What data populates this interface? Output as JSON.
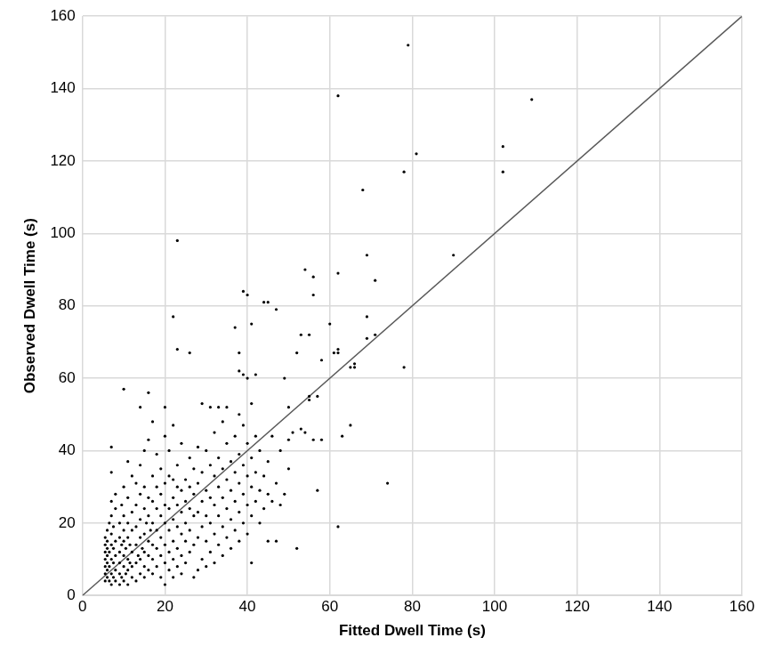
{
  "chart_data": {
    "type": "scatter",
    "x_label": "Fitted Dwell Time (s)",
    "y_label": "Observed Dwell Time (s)",
    "xlim": [
      0,
      160
    ],
    "ylim": [
      0,
      160
    ],
    "xticks": [
      0,
      20,
      40,
      60,
      80,
      100,
      120,
      140,
      160
    ],
    "yticks": [
      0,
      20,
      40,
      60,
      80,
      100,
      120,
      140,
      160
    ],
    "grid": true,
    "series": [
      {
        "type": "scatter",
        "color": "#000000",
        "marker": "circle",
        "x": [
          79,
          62,
          109,
          102,
          81,
          102,
          78,
          68,
          23,
          90,
          69,
          54,
          62,
          56,
          71,
          39,
          40,
          56,
          44,
          45,
          47,
          22,
          69,
          60,
          41,
          37,
          53,
          55,
          71,
          69,
          23,
          26,
          38,
          52,
          61,
          62,
          62,
          58,
          66,
          66,
          65,
          78,
          38,
          40,
          49,
          39,
          42,
          10,
          16,
          55,
          57,
          55,
          41,
          29,
          14,
          20,
          31,
          33,
          35,
          50,
          38,
          53,
          51,
          54,
          56,
          58,
          63,
          65,
          74,
          62,
          57,
          52,
          45,
          47,
          41,
          22,
          7,
          7,
          11,
          5.5,
          5.5,
          5.5,
          5.5,
          5.5,
          5.5,
          5.5,
          6,
          6,
          6,
          6,
          6,
          6,
          6,
          6.5,
          6.5,
          6.5,
          6.5,
          7,
          7,
          7,
          7,
          7,
          7,
          7,
          7.5,
          7.5,
          7.5,
          7.5,
          8,
          8,
          8,
          8,
          8,
          8,
          9,
          9,
          9,
          9,
          9,
          9,
          9.5,
          9.5,
          9.5,
          10,
          10,
          10,
          10,
          10,
          10,
          10,
          10.5,
          10.5,
          11,
          11,
          11,
          11,
          11,
          11,
          11.5,
          11.5,
          12,
          12,
          12,
          12,
          12,
          12,
          13,
          13,
          13,
          13,
          13,
          13,
          13.5,
          14,
          14,
          14,
          14,
          14,
          14,
          14.5,
          15,
          15,
          15,
          15,
          15,
          15,
          15,
          15.5,
          16,
          16,
          16,
          16,
          16,
          16,
          16.5,
          17,
          17,
          17,
          17,
          17,
          17,
          17,
          18,
          18,
          18,
          18,
          18,
          18,
          19,
          19,
          19,
          19,
          19,
          19,
          20,
          20,
          20,
          20,
          20,
          20,
          20,
          21,
          21,
          21,
          21,
          21,
          21,
          22,
          22,
          22,
          22,
          22,
          22,
          23,
          23,
          23,
          23,
          23,
          23,
          24,
          24,
          24,
          24,
          24,
          24,
          25,
          25,
          25,
          25,
          25,
          26,
          26,
          26,
          26,
          26,
          27,
          27,
          27,
          27,
          27,
          28,
          28,
          28,
          28,
          28,
          29,
          29,
          29,
          29,
          30,
          30,
          30,
          30,
          30,
          31,
          31,
          31,
          31,
          32,
          32,
          32,
          32,
          32,
          33,
          33,
          33,
          33,
          34,
          34,
          34,
          34,
          34,
          35,
          35,
          35,
          35,
          36,
          36,
          36,
          36,
          37,
          37,
          37,
          37,
          38,
          38,
          38,
          38,
          39,
          39,
          39,
          39,
          40,
          40,
          40,
          40,
          41,
          41,
          41,
          42,
          42,
          42,
          43,
          43,
          43,
          44,
          44,
          45,
          45,
          46,
          46,
          47,
          48,
          48,
          49,
          50,
          50
        ],
        "values": [
          152,
          138,
          137,
          124,
          122,
          117,
          117,
          112,
          98,
          94,
          94,
          90,
          89,
          88,
          87,
          84,
          83,
          83,
          81,
          81,
          79,
          77,
          77,
          75,
          75,
          74,
          72,
          72,
          72,
          71,
          68,
          67,
          67,
          67,
          67,
          67,
          68,
          65,
          64,
          63,
          63,
          63,
          62,
          60,
          60,
          61,
          61,
          57,
          56,
          55,
          55,
          54,
          53,
          53,
          52,
          52,
          52,
          52,
          52,
          52,
          50,
          46,
          45,
          45,
          43,
          43,
          44,
          47,
          31,
          19,
          29,
          13,
          15,
          15,
          9,
          47,
          41,
          34,
          37,
          4,
          6,
          8,
          10,
          12,
          14,
          16,
          5,
          7,
          9,
          11,
          13,
          15,
          18,
          4,
          8,
          12,
          20,
          3,
          6,
          10,
          14,
          17,
          22,
          26,
          5,
          9,
          13,
          19,
          4,
          7,
          11,
          15,
          24,
          28,
          3,
          6,
          9,
          12,
          16,
          20,
          5,
          14,
          25,
          4,
          8,
          11,
          15,
          18,
          22,
          30,
          6,
          13,
          3,
          7,
          10,
          16,
          20,
          27,
          9,
          14,
          5,
          8,
          12,
          18,
          23,
          33,
          4,
          9,
          14,
          19,
          25,
          31,
          11,
          6,
          10,
          16,
          21,
          28,
          36,
          13,
          5,
          8,
          12,
          17,
          24,
          30,
          40,
          20,
          7,
          11,
          15,
          22,
          27,
          43,
          18,
          6,
          10,
          14,
          20,
          26,
          33,
          48,
          8,
          13,
          18,
          24,
          30,
          39,
          5,
          11,
          16,
          22,
          28,
          35,
          3,
          9,
          14,
          20,
          25,
          31,
          44,
          7,
          12,
          18,
          24,
          33,
          40,
          5,
          10,
          15,
          21,
          27,
          32,
          8,
          13,
          19,
          25,
          30,
          36,
          6,
          11,
          17,
          23,
          29,
          42,
          9,
          15,
          20,
          26,
          32,
          12,
          18,
          24,
          30,
          38,
          5,
          14,
          22,
          28,
          35,
          7,
          16,
          23,
          31,
          41,
          10,
          19,
          26,
          34,
          8,
          15,
          22,
          29,
          40,
          12,
          20,
          27,
          36,
          9,
          17,
          25,
          33,
          45,
          14,
          22,
          30,
          38,
          11,
          19,
          27,
          35,
          48,
          16,
          24,
          32,
          42,
          13,
          21,
          29,
          37,
          18,
          26,
          34,
          44,
          15,
          23,
          31,
          39,
          20,
          28,
          36,
          47,
          17,
          25,
          33,
          42,
          22,
          30,
          38,
          26,
          34,
          44,
          20,
          29,
          40,
          24,
          33,
          28,
          37,
          26,
          44,
          31,
          25,
          40,
          28,
          35,
          43
        ]
      },
      {
        "type": "line",
        "color": "#595959",
        "line_style": "solid",
        "x": [
          0,
          160
        ],
        "values": [
          0,
          160
        ]
      }
    ]
  }
}
